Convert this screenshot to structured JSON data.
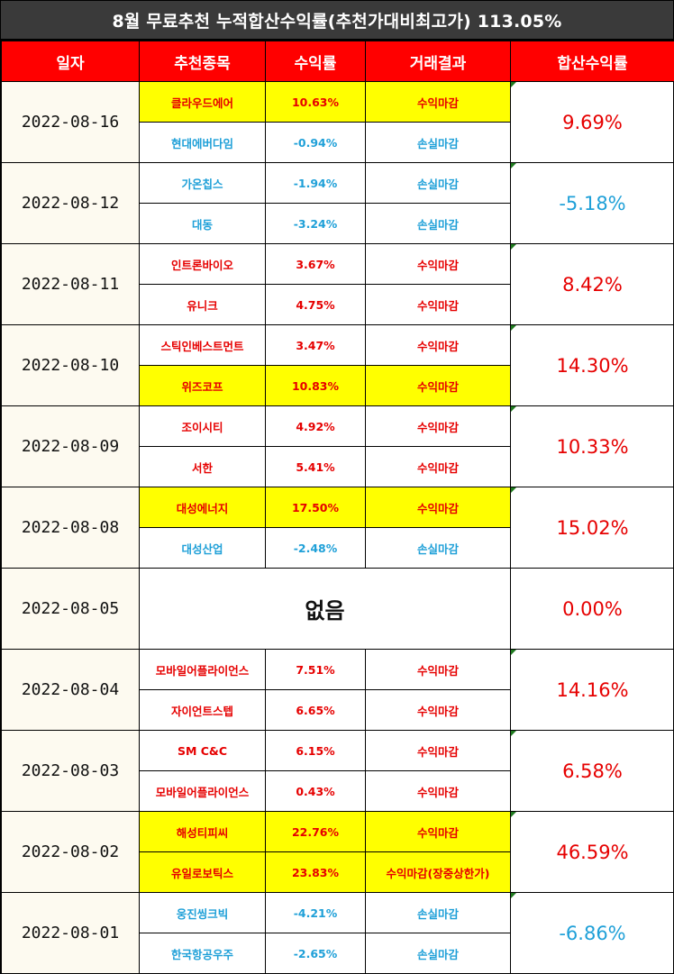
{
  "title": "8월 무료추천 누적합산수익률(추천가대비최고가) 113.05%",
  "headers": [
    "일자",
    "추천종목",
    "수익률",
    "거래결과",
    "합산수익률"
  ],
  "colors": {
    "header_bg": "#ff0000",
    "profit": "#e60000",
    "loss": "#1fa0d8",
    "highlight": "#ffff00"
  },
  "rows": [
    {
      "date": "2022-08-16",
      "total": "9.69%",
      "total_color": "red",
      "items": [
        {
          "stock": "클라우드에어",
          "ret": "10.63%",
          "result": "수익마감",
          "color": "red",
          "highlight": true
        },
        {
          "stock": "현대에버다임",
          "ret": "-0.94%",
          "result": "손실마감",
          "color": "blue",
          "highlight": false
        }
      ]
    },
    {
      "date": "2022-08-12",
      "total": "-5.18%",
      "total_color": "blue",
      "items": [
        {
          "stock": "가온칩스",
          "ret": "-1.94%",
          "result": "손실마감",
          "color": "blue",
          "highlight": false
        },
        {
          "stock": "대동",
          "ret": "-3.24%",
          "result": "손실마감",
          "color": "blue",
          "highlight": false
        }
      ]
    },
    {
      "date": "2022-08-11",
      "total": "8.42%",
      "total_color": "red",
      "items": [
        {
          "stock": "인트론바이오",
          "ret": "3.67%",
          "result": "수익마감",
          "color": "red",
          "highlight": false
        },
        {
          "stock": "유니크",
          "ret": "4.75%",
          "result": "수익마감",
          "color": "red",
          "highlight": false
        }
      ]
    },
    {
      "date": "2022-08-10",
      "total": "14.30%",
      "total_color": "red",
      "items": [
        {
          "stock": "스틱인베스트먼트",
          "ret": "3.47%",
          "result": "수익마감",
          "color": "red",
          "highlight": false
        },
        {
          "stock": "위즈코프",
          "ret": "10.83%",
          "result": "수익마감",
          "color": "red",
          "highlight": true
        }
      ]
    },
    {
      "date": "2022-08-09",
      "total": "10.33%",
      "total_color": "red",
      "items": [
        {
          "stock": "조이시티",
          "ret": "4.92%",
          "result": "수익마감",
          "color": "red",
          "highlight": false
        },
        {
          "stock": "서한",
          "ret": "5.41%",
          "result": "수익마감",
          "color": "red",
          "highlight": false
        }
      ]
    },
    {
      "date": "2022-08-08",
      "total": "15.02%",
      "total_color": "red",
      "items": [
        {
          "stock": "대성에너지",
          "ret": "17.50%",
          "result": "수익마감",
          "color": "red",
          "highlight": true
        },
        {
          "stock": "대성산업",
          "ret": "-2.48%",
          "result": "손실마감",
          "color": "blue",
          "highlight": false
        }
      ]
    },
    {
      "date": "2022-08-05",
      "total": "0.00%",
      "total_color": "red",
      "none_text": "없음",
      "items": []
    },
    {
      "date": "2022-08-04",
      "total": "14.16%",
      "total_color": "red",
      "items": [
        {
          "stock": "모바일어플라이언스",
          "ret": "7.51%",
          "result": "수익마감",
          "color": "red",
          "highlight": false
        },
        {
          "stock": "자이언트스텝",
          "ret": "6.65%",
          "result": "수익마감",
          "color": "red",
          "highlight": false
        }
      ]
    },
    {
      "date": "2022-08-03",
      "total": "6.58%",
      "total_color": "red",
      "items": [
        {
          "stock": "SM C&C",
          "ret": "6.15%",
          "result": "수익마감",
          "color": "red",
          "highlight": false
        },
        {
          "stock": "모바일어플라이언스",
          "ret": "0.43%",
          "result": "수익마감",
          "color": "red",
          "highlight": false
        }
      ]
    },
    {
      "date": "2022-08-02",
      "total": "46.59%",
      "total_color": "red",
      "items": [
        {
          "stock": "해성티피씨",
          "ret": "22.76%",
          "result": "수익마감",
          "color": "red",
          "highlight": true
        },
        {
          "stock": "유일로보틱스",
          "ret": "23.83%",
          "result": "수익마감(장중상한가)",
          "color": "red",
          "highlight": true
        }
      ]
    },
    {
      "date": "2022-08-01",
      "total": "-6.86%",
      "total_color": "blue",
      "items": [
        {
          "stock": "웅진씽크빅",
          "ret": "-4.21%",
          "result": "손실마감",
          "color": "blue",
          "highlight": false
        },
        {
          "stock": "한국항공우주",
          "ret": "-2.65%",
          "result": "손실마감",
          "color": "blue",
          "highlight": false
        }
      ]
    }
  ]
}
